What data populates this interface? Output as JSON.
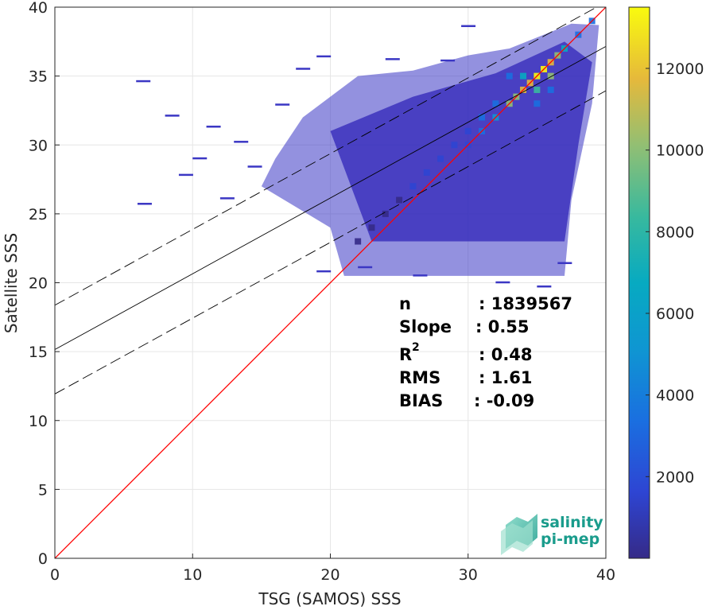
{
  "chart_data": {
    "type": "heatmap",
    "title": "",
    "xlabel": "TSG (SAMOS) SSS",
    "ylabel": "Satellite SSS",
    "xlim": [
      0,
      40
    ],
    "ylim": [
      0,
      40
    ],
    "xticks": [
      0,
      10,
      20,
      30,
      40
    ],
    "yticks": [
      0,
      5,
      10,
      15,
      20,
      25,
      30,
      35,
      40
    ],
    "grid": true,
    "colormap": "parula",
    "colorbar": {
      "ticks": [
        2000,
        4000,
        6000,
        8000,
        10000,
        12000
      ],
      "min": 0,
      "max": 13500,
      "position": "right"
    },
    "lines": [
      {
        "name": "1:1 line",
        "slope": 1.0,
        "intercept": 0.0,
        "color": "#ff0000",
        "style": "solid"
      },
      {
        "name": "regression",
        "slope": 0.55,
        "intercept": 15.15,
        "color": "#000000",
        "style": "solid"
      },
      {
        "name": "upper bound",
        "slope": 0.55,
        "intercept": 18.37,
        "color": "#000000",
        "style": "dashed"
      },
      {
        "name": "lower bound",
        "slope": 0.55,
        "intercept": 11.93,
        "color": "#000000",
        "style": "dashed"
      }
    ],
    "density_cells": [
      [
        33,
        33,
        9
      ],
      [
        34,
        34,
        11
      ],
      [
        35,
        35,
        13
      ],
      [
        36,
        36,
        12
      ],
      [
        37,
        37,
        7
      ],
      [
        32,
        32,
        5
      ],
      [
        31,
        31,
        3
      ],
      [
        30,
        30,
        2
      ],
      [
        33.5,
        33.5,
        10
      ],
      [
        34.5,
        34.5,
        12
      ],
      [
        35.5,
        35.5,
        13
      ],
      [
        36.5,
        36.5,
        10
      ],
      [
        34,
        35,
        7
      ],
      [
        35,
        34,
        8
      ],
      [
        36,
        35,
        9
      ],
      [
        38,
        38,
        4
      ],
      [
        39,
        39,
        3
      ],
      [
        30,
        31,
        2
      ],
      [
        31,
        32,
        3
      ],
      [
        32,
        33,
        4
      ],
      [
        29,
        30,
        2
      ],
      [
        28,
        29,
        1.6
      ],
      [
        27,
        28,
        1.3
      ],
      [
        26,
        27,
        1.0
      ],
      [
        25,
        26,
        0.8
      ],
      [
        24,
        25,
        0.6
      ],
      [
        23,
        24,
        0.5
      ],
      [
        22,
        23,
        0.4
      ],
      [
        33,
        35,
        3
      ],
      [
        35,
        33,
        3
      ],
      [
        36,
        34,
        4
      ]
    ],
    "stats": {
      "n_label": "n",
      "n_value": ": 1839567",
      "slope_label": "Slope",
      "slope_value": ": 0.55",
      "r2_label": "R",
      "r2_sup": "2",
      "r2_value": ": 0.48",
      "rms_label": "RMS",
      "rms_value": ": 1.61",
      "bias_label": "BIAS",
      "bias_value": ": -0.09"
    },
    "logo": {
      "line1": "salinity",
      "line2": "pi-mep"
    }
  },
  "colors": {
    "one_to_one": "#ff0000",
    "regression": "#000000",
    "grid": "#e6e6e6",
    "axis": "#262626",
    "logo": "#1a9c8c"
  }
}
